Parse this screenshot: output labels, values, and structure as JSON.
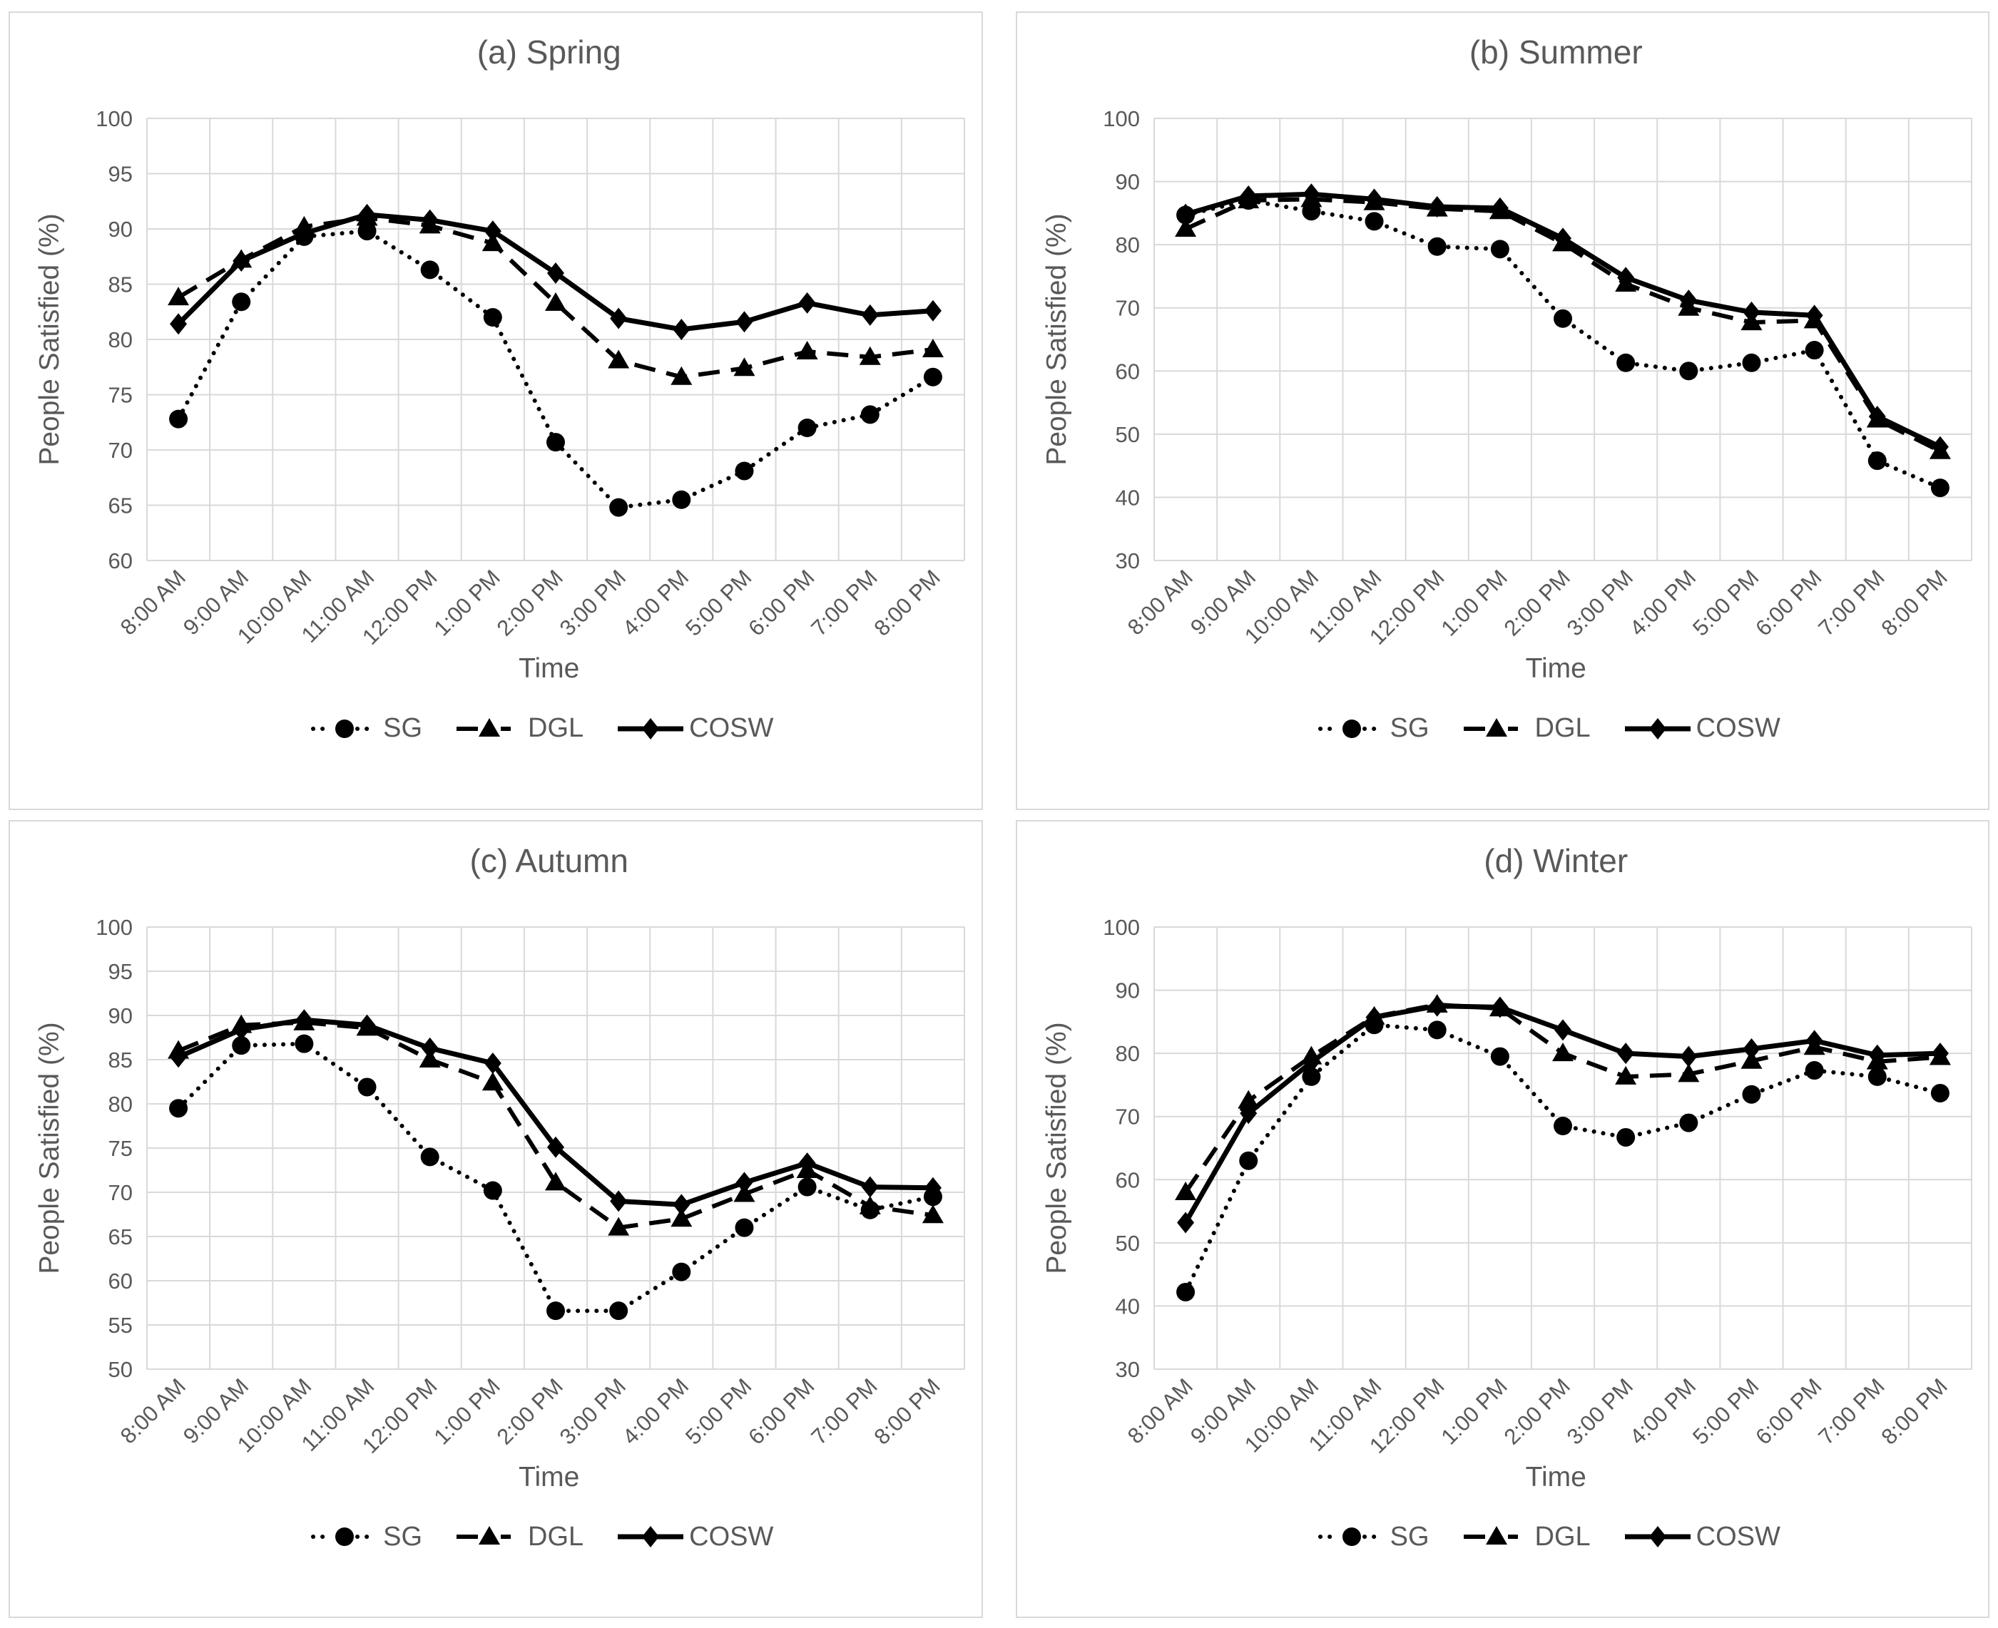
{
  "page": {
    "background": "#ffffff"
  },
  "colors": {
    "series": "#000000",
    "grid": "#d9d9d9",
    "panel_border": "#d9d9d9",
    "text": "#595959",
    "background": "#ffffff"
  },
  "chart_data": [
    {
      "type": "line",
      "title": "(a) Spring",
      "xlabel": "Time",
      "ylabel": "People Satisfied (%)",
      "categories": [
        "8:00 AM",
        "9:00 AM",
        "10:00 AM",
        "11:00 AM",
        "12:00 PM",
        "1:00 PM",
        "2:00 PM",
        "3:00 PM",
        "4:00 PM",
        "5:00 PM",
        "6:00 PM",
        "7:00 PM",
        "8:00 PM"
      ],
      "ylim": [
        60,
        100
      ],
      "ytick_step": 5,
      "ytick_labels": [
        100,
        95,
        90,
        85,
        80,
        75,
        70,
        65,
        60
      ],
      "grid": true,
      "legend_position": "bottom",
      "series": [
        {
          "name": "SG",
          "line": "dotted",
          "marker": "circle",
          "color": "#000000",
          "values": [
            72.8,
            83.4,
            89.3,
            89.8,
            86.3,
            82.0,
            70.7,
            64.8,
            65.5,
            68.1,
            72.0,
            73.2,
            76.6
          ]
        },
        {
          "name": "DGL",
          "line": "dashed",
          "marker": "triangle",
          "color": "#000000",
          "values": [
            83.8,
            87.2,
            90.2,
            91.0,
            90.3,
            88.7,
            83.3,
            78.1,
            76.6,
            77.4,
            78.9,
            78.4,
            79.1
          ]
        },
        {
          "name": "COSW",
          "line": "solid",
          "marker": "diamond",
          "color": "#000000",
          "values": [
            81.4,
            87.1,
            89.6,
            91.3,
            90.8,
            89.8,
            86.0,
            81.9,
            80.9,
            81.6,
            83.3,
            82.2,
            82.6
          ]
        }
      ]
    },
    {
      "type": "line",
      "title": "(b) Summer",
      "xlabel": "Time",
      "ylabel": "People Satisfied (%)",
      "categories": [
        "8:00 AM",
        "9:00 AM",
        "10:00 AM",
        "11:00 AM",
        "12:00 PM",
        "1:00 PM",
        "2:00 PM",
        "3:00 PM",
        "4:00 PM",
        "5:00 PM",
        "6:00 PM",
        "7:00 PM",
        "8:00 PM"
      ],
      "ylim": [
        30,
        100
      ],
      "ytick_step": 10,
      "ytick_labels": [
        100,
        90,
        80,
        70,
        60,
        50,
        40,
        30
      ],
      "grid": true,
      "legend_position": "bottom",
      "series": [
        {
          "name": "SG",
          "line": "dotted",
          "marker": "circle",
          "color": "#000000",
          "values": [
            84.7,
            87.0,
            85.3,
            83.7,
            79.7,
            79.3,
            68.3,
            61.3,
            60.0,
            61.3,
            63.3,
            45.8,
            41.5
          ]
        },
        {
          "name": "DGL",
          "line": "dashed",
          "marker": "triangle",
          "color": "#000000",
          "values": [
            82.5,
            87.0,
            87.2,
            86.7,
            85.7,
            85.3,
            80.2,
            73.8,
            70.0,
            67.7,
            68.0,
            52.3,
            47.3
          ]
        },
        {
          "name": "COSW",
          "line": "solid",
          "marker": "diamond",
          "color": "#000000",
          "values": [
            84.8,
            87.7,
            88.0,
            87.2,
            86.0,
            85.8,
            81.0,
            74.8,
            71.2,
            69.3,
            68.8,
            52.8,
            48.0
          ]
        }
      ]
    },
    {
      "type": "line",
      "title": "(c) Autumn",
      "xlabel": "Time",
      "ylabel": "People Satisfied (%)",
      "categories": [
        "8:00 AM",
        "9:00 AM",
        "10:00 AM",
        "11:00 AM",
        "12:00 PM",
        "1:00 PM",
        "2:00 PM",
        "3:00 PM",
        "4:00 PM",
        "5:00 PM",
        "6:00 PM",
        "7:00 PM",
        "8:00 PM"
      ],
      "ylim": [
        50,
        100
      ],
      "ytick_step": 5,
      "ytick_labels": [
        100,
        95,
        90,
        85,
        80,
        75,
        70,
        65,
        60,
        55,
        50
      ],
      "grid": true,
      "legend_position": "bottom",
      "series": [
        {
          "name": "SG",
          "line": "dotted",
          "marker": "circle",
          "color": "#000000",
          "values": [
            79.5,
            86.6,
            86.8,
            81.9,
            74.0,
            70.2,
            56.6,
            56.6,
            61.0,
            66.0,
            70.6,
            68.0,
            69.5
          ]
        },
        {
          "name": "DGL",
          "line": "dashed",
          "marker": "triangle",
          "color": "#000000",
          "values": [
            86.0,
            88.9,
            89.2,
            88.6,
            85.0,
            82.4,
            71.1,
            66.0,
            67.0,
            69.8,
            72.5,
            68.4,
            67.4
          ]
        },
        {
          "name": "COSW",
          "line": "solid",
          "marker": "diamond",
          "color": "#000000",
          "values": [
            85.3,
            88.4,
            89.5,
            88.9,
            86.3,
            84.6,
            75.1,
            69.0,
            68.6,
            71.1,
            73.3,
            70.6,
            70.5
          ]
        }
      ]
    },
    {
      "type": "line",
      "title": "(d) Winter",
      "xlabel": "Time",
      "ylabel": "People Satisfied (%)",
      "categories": [
        "8:00 AM",
        "9:00 AM",
        "10:00 AM",
        "11:00 AM",
        "12:00 PM",
        "1:00 PM",
        "2:00 PM",
        "3:00 PM",
        "4:00 PM",
        "5:00 PM",
        "6:00 PM",
        "7:00 PM",
        "8:00 PM"
      ],
      "ylim": [
        30,
        100
      ],
      "ytick_step": 10,
      "ytick_labels": [
        100,
        90,
        80,
        70,
        60,
        50,
        40,
        30
      ],
      "grid": true,
      "legend_position": "bottom",
      "series": [
        {
          "name": "SG",
          "line": "dotted",
          "marker": "circle",
          "color": "#000000",
          "values": [
            42.2,
            63.0,
            76.3,
            84.5,
            83.7,
            79.5,
            68.5,
            66.7,
            69.0,
            73.5,
            77.3,
            76.3,
            73.7
          ]
        },
        {
          "name": "DGL",
          "line": "dashed",
          "marker": "triangle",
          "color": "#000000",
          "values": [
            58.0,
            72.5,
            79.5,
            85.8,
            87.7,
            87.1,
            80.0,
            76.3,
            76.7,
            78.8,
            81.0,
            78.7,
            79.4
          ]
        },
        {
          "name": "COSW",
          "line": "solid",
          "marker": "diamond",
          "color": "#000000",
          "values": [
            53.2,
            70.5,
            78.6,
            85.7,
            87.5,
            87.3,
            83.7,
            80.0,
            79.5,
            80.7,
            82.0,
            79.7,
            80.0
          ]
        }
      ]
    }
  ]
}
